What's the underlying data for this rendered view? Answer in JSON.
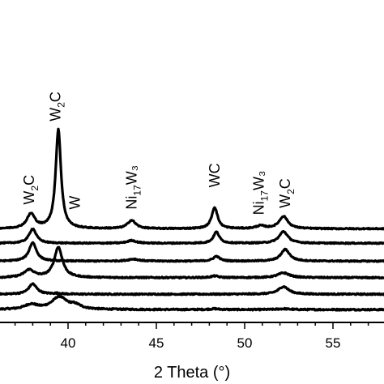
{
  "chart_data": {
    "type": "line",
    "title": "",
    "xlabel": "2 Theta (°)",
    "ylabel": "",
    "xlim": [
      33,
      58
    ],
    "x_ticks": [
      40,
      45,
      50,
      55
    ],
    "grid": false,
    "legend": "none",
    "series": [
      {
        "baseline": 0.93,
        "noise": 0.1,
        "peaks": [
          [
            37.9,
            0.35,
            0.45
          ],
          [
            39.5,
            0.9,
            0.5
          ],
          [
            40.4,
            0.28,
            0.4
          ],
          [
            48.3,
            0.06,
            0.3
          ],
          [
            52.2,
            0.06,
            0.4
          ]
        ]
      },
      {
        "baseline": 2.05,
        "noise": 0.09,
        "peaks": [
          [
            38.0,
            0.75,
            0.28
          ],
          [
            39.4,
            0.05,
            0.3
          ],
          [
            52.2,
            0.55,
            0.35
          ]
        ]
      },
      {
        "baseline": 3.25,
        "noise": 0.09,
        "peaks": [
          [
            37.8,
            0.55,
            0.35
          ],
          [
            39.45,
            2.2,
            0.28
          ],
          [
            48.3,
            0.12,
            0.25
          ],
          [
            52.2,
            0.35,
            0.4
          ]
        ]
      },
      {
        "baseline": 4.45,
        "noise": 0.08,
        "peaks": [
          [
            38.0,
            1.35,
            0.25
          ],
          [
            43.7,
            0.15,
            0.35
          ],
          [
            48.4,
            0.35,
            0.22
          ],
          [
            52.3,
            0.85,
            0.3
          ]
        ]
      },
      {
        "baseline": 5.75,
        "noise": 0.08,
        "peaks": [
          [
            38.0,
            1.05,
            0.25
          ],
          [
            43.6,
            0.2,
            0.3
          ],
          [
            48.4,
            0.82,
            0.2
          ],
          [
            52.2,
            0.85,
            0.3
          ]
        ]
      },
      {
        "baseline": 6.8,
        "noise": 0.08,
        "peaks": [
          [
            37.9,
            1.05,
            0.28
          ],
          [
            39.45,
            7.2,
            0.18
          ],
          [
            43.6,
            0.6,
            0.28
          ],
          [
            48.3,
            1.55,
            0.2
          ],
          [
            50.9,
            0.2,
            0.3
          ],
          [
            52.2,
            0.9,
            0.3
          ]
        ]
      }
    ],
    "peak_labels": [
      {
        "base": "W",
        "sub": "2",
        "tail": "C",
        "x": 37.8,
        "y": 8.55
      },
      {
        "base": "W",
        "sub": "2",
        "tail": "C",
        "x": 39.3,
        "y": 14.6
      },
      {
        "base": "W",
        "sub": "",
        "tail": "",
        "x": 40.4,
        "y": 8.2
      },
      {
        "base": "Ni",
        "sub": "17",
        "tail": "W₃",
        "x": 43.6,
        "y": 8.2
      },
      {
        "base": "WC",
        "sub": "",
        "tail": "",
        "x": 48.3,
        "y": 9.8
      },
      {
        "base": "Ni",
        "sub": "17",
        "tail": "W₃",
        "x": 50.8,
        "y": 7.8
      },
      {
        "base": "W",
        "sub": "2",
        "tail": "C",
        "x": 52.3,
        "y": 8.3
      }
    ]
  }
}
